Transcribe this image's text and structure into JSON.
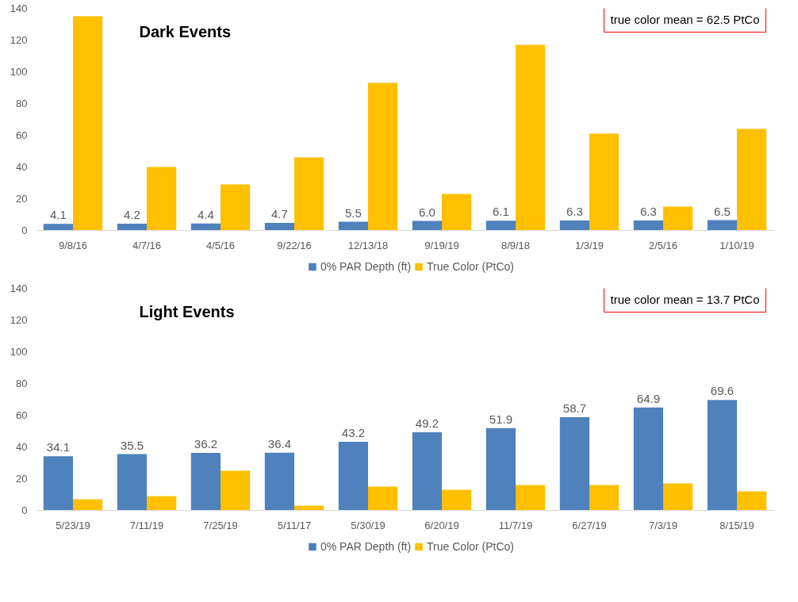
{
  "chart_data": [
    {
      "type": "bar",
      "title": "Dark Events",
      "categories": [
        "9/8/16",
        "4/7/16",
        "4/5/16",
        "9/22/16",
        "12/13/18",
        "9/19/19",
        "8/9/18",
        "1/3/19",
        "2/5/16",
        "1/10/19"
      ],
      "series": [
        {
          "name": "0% PAR Depth (ft)",
          "color": "#4f81bd",
          "values": [
            4.1,
            4.2,
            4.4,
            4.7,
            5.5,
            6.0,
            6.1,
            6.3,
            6.3,
            6.5
          ],
          "value_labels": [
            "4.1",
            "4.2",
            "4.4",
            "4.7",
            "5.5",
            "6.0",
            "6.1",
            "6.3",
            "6.3",
            "6.5"
          ]
        },
        {
          "name": "True Color (PtCo)",
          "color": "#ffc000",
          "values": [
            135,
            40,
            29,
            46,
            93,
            23,
            117,
            61,
            15,
            64
          ]
        }
      ],
      "ylim": [
        0,
        140
      ],
      "yticks": [
        0,
        20,
        40,
        60,
        80,
        100,
        120,
        140
      ],
      "grid": false,
      "legend": "bottom",
      "annotations": [
        "true color mean = 62.5 PtCo"
      ]
    },
    {
      "type": "bar",
      "title": "Light Events",
      "categories": [
        "5/23/19",
        "7/11/19",
        "7/25/19",
        "5/11/17",
        "5/30/19",
        "6/20/19",
        "11/7/19",
        "6/27/19",
        "7/3/19",
        "8/15/19"
      ],
      "series": [
        {
          "name": "0% PAR Depth (ft)",
          "color": "#4f81bd",
          "values": [
            34.1,
            35.5,
            36.2,
            36.4,
            43.2,
            49.2,
            51.9,
            58.7,
            64.9,
            69.6
          ],
          "value_labels": [
            "34.1",
            "35.5",
            "36.2",
            "36.4",
            "43.2",
            "49.2",
            "51.9",
            "58.7",
            "64.9",
            "69.6"
          ]
        },
        {
          "name": "True Color (PtCo)",
          "color": "#ffc000",
          "values": [
            7,
            9,
            25,
            3,
            15,
            13,
            16,
            16,
            17,
            12
          ]
        }
      ],
      "ylim": [
        0,
        140
      ],
      "yticks": [
        0,
        20,
        40,
        60,
        80,
        100,
        120,
        140
      ],
      "grid": false,
      "legend": "bottom",
      "annotations": [
        "true color mean = 13.7 PtCo"
      ]
    }
  ]
}
